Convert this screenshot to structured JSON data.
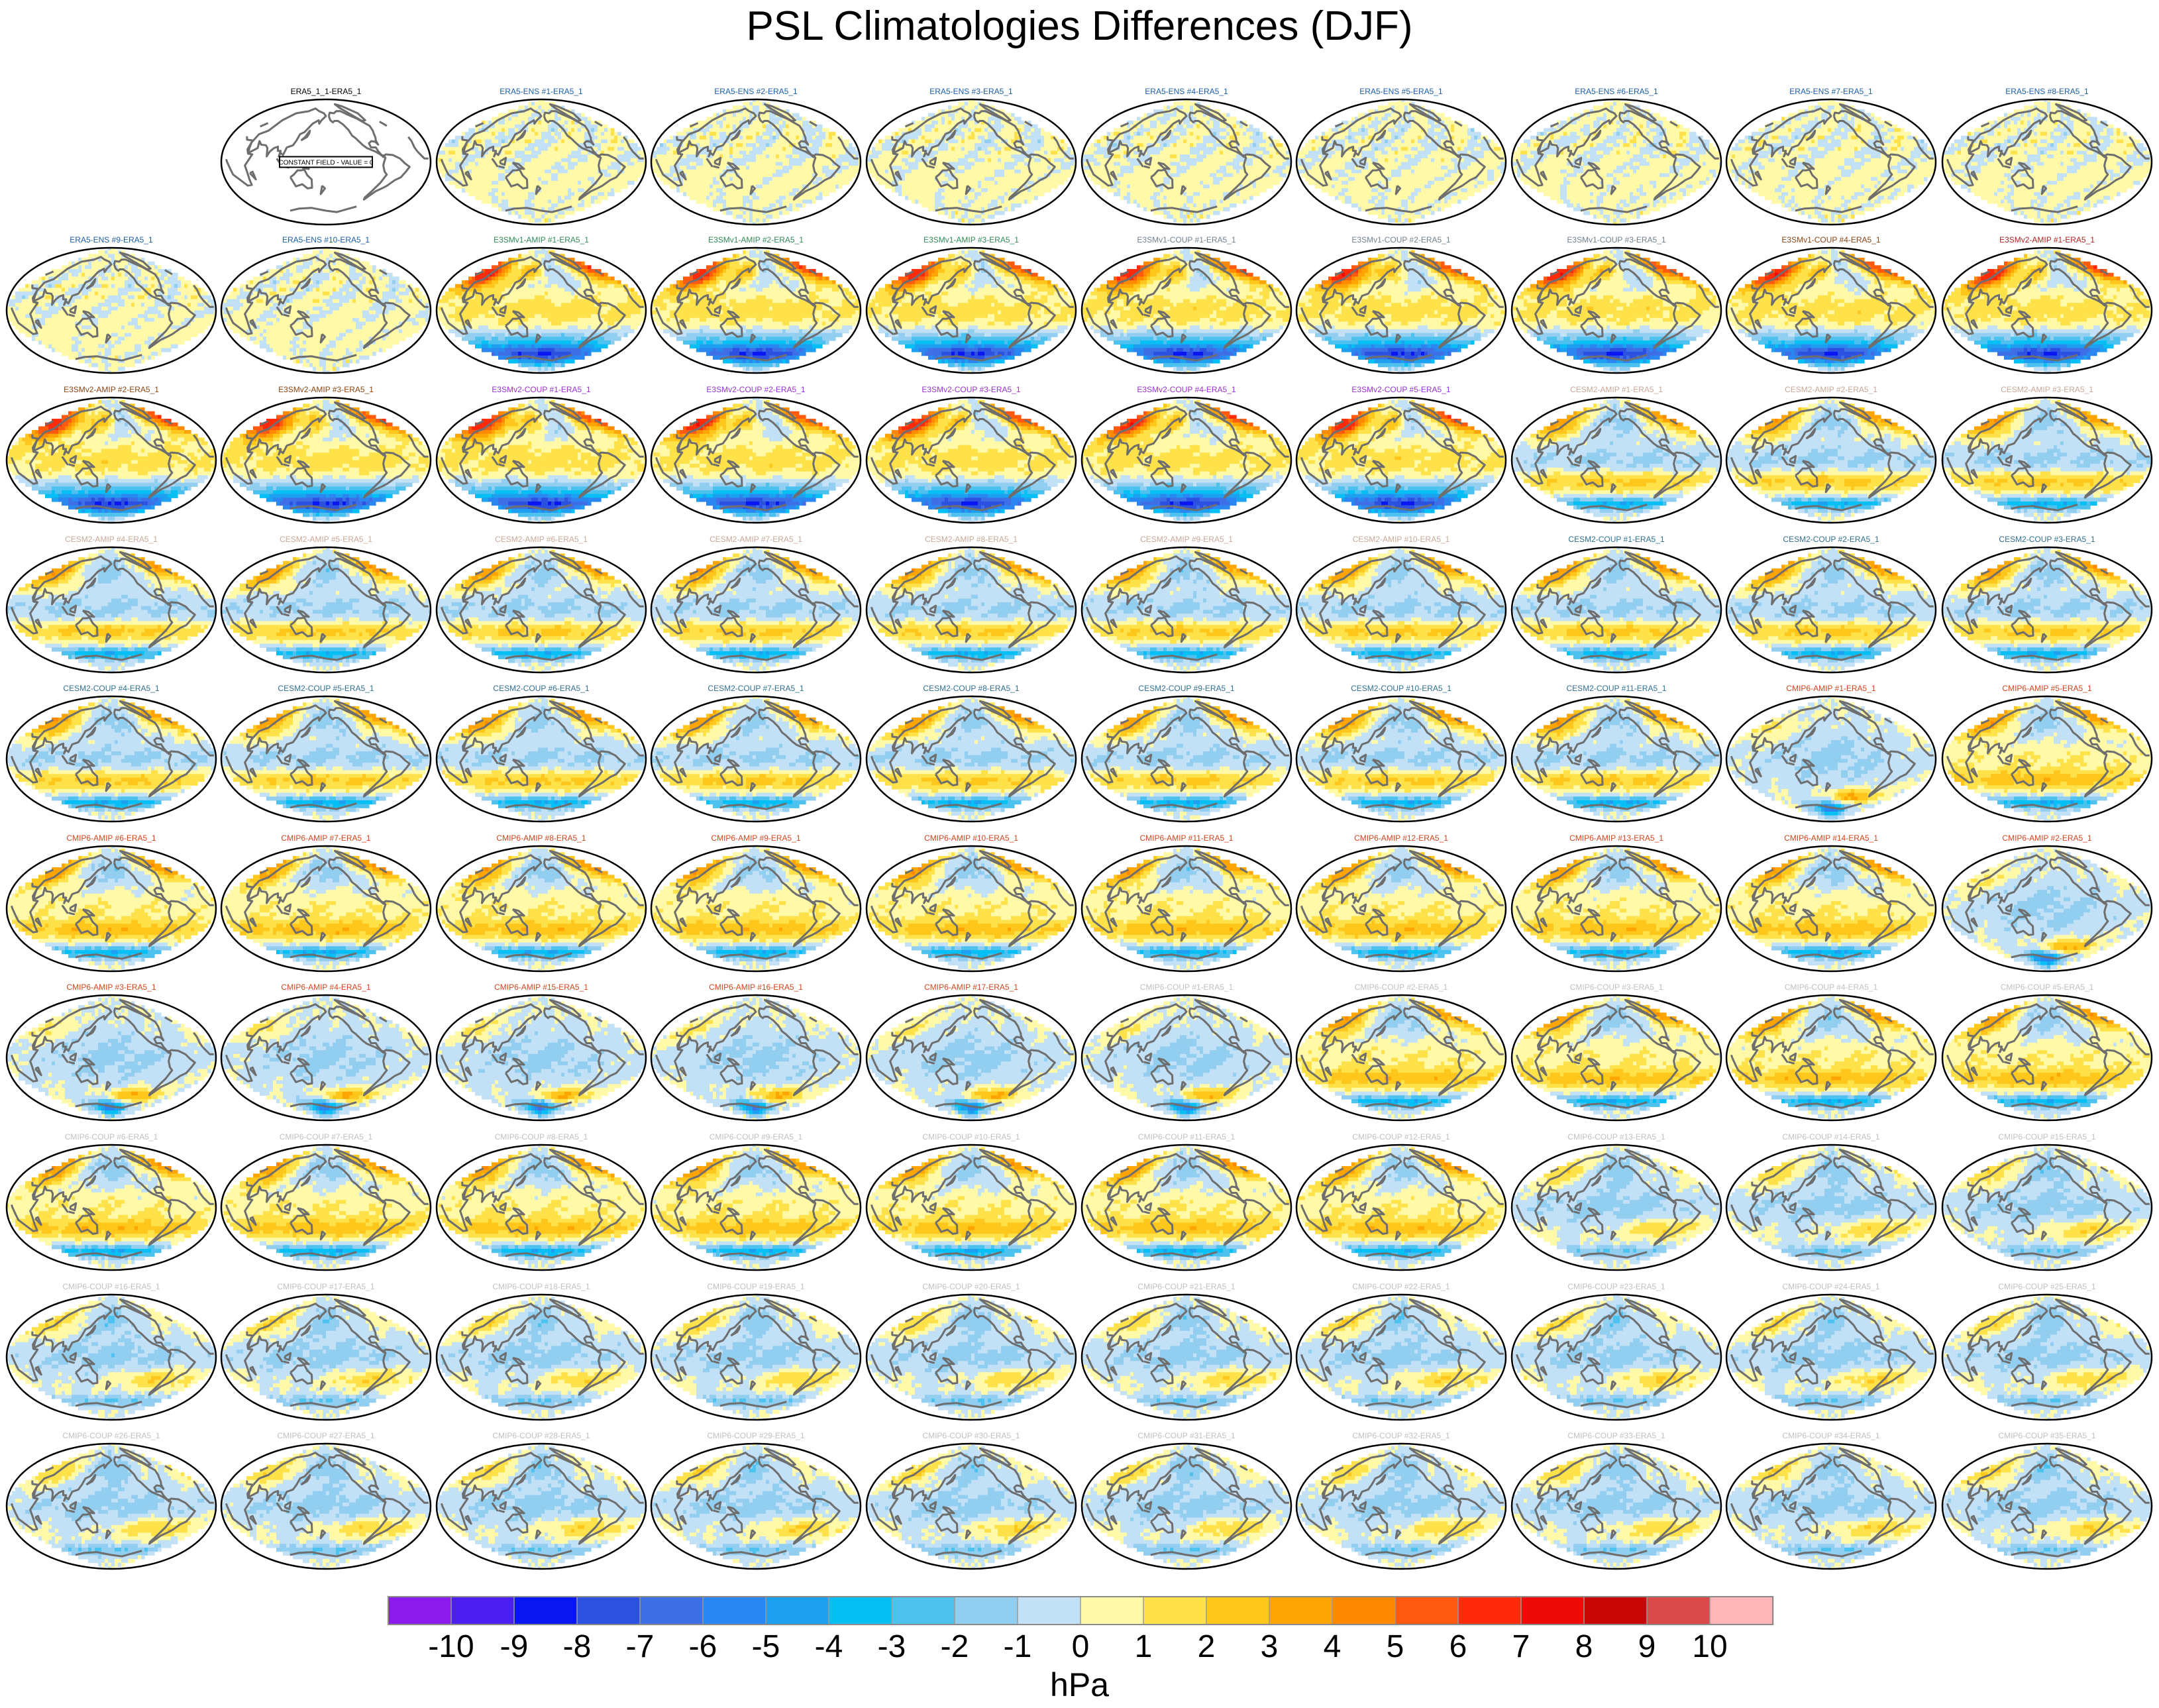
{
  "chart_data": {
    "type": "heatmap",
    "title": "PSL Climatologies Differences (DJF)",
    "subtitle": "Grid of global maps (10 rows x 10 columns); first cell empty",
    "colorbar": {
      "label": "hPa",
      "tick_labels": [
        "-10",
        "-9",
        "-8",
        "-7",
        "-6",
        "-5",
        "-4",
        "-3",
        "-2",
        "-1",
        "0",
        "1",
        "2",
        "3",
        "4",
        "5",
        "6",
        "7",
        "8",
        "9",
        "10"
      ],
      "colors": [
        "#8c1ceb",
        "#4a1ff0",
        "#0a16f2",
        "#2c50e0",
        "#3e6fe6",
        "#2a86f0",
        "#1ea0f0",
        "#06bff5",
        "#4dc2ef",
        "#92cef0",
        "#c2e0f6",
        "#fff9a8",
        "#ffe24a",
        "#ffc61c",
        "#ffa503",
        "#ff8a00",
        "#ff5a10",
        "#ff2a0a",
        "#ee0a08",
        "#c90606",
        "#d9494a",
        "#ffb6b8"
      ]
    },
    "panels": [
      {
        "title": "",
        "style": "blank",
        "color": "#000000"
      },
      {
        "title": "ERA5_1_1-ERA5_1",
        "style": "constant",
        "color": "#000000",
        "note": "CONSTANT FIELD - VALUE = 0"
      },
      {
        "title": "ERA5-ENS   #1-ERA5_1",
        "style": "ens",
        "color": "#1b5fa8"
      },
      {
        "title": "ERA5-ENS   #2-ERA5_1",
        "style": "ens",
        "color": "#1b5fa8"
      },
      {
        "title": "ERA5-ENS   #3-ERA5_1",
        "style": "ens",
        "color": "#1b5fa8"
      },
      {
        "title": "ERA5-ENS   #4-ERA5_1",
        "style": "ens",
        "color": "#1b5fa8"
      },
      {
        "title": "ERA5-ENS   #5-ERA5_1",
        "style": "ens",
        "color": "#1b5fa8"
      },
      {
        "title": "ERA5-ENS   #6-ERA5_1",
        "style": "ens",
        "color": "#1b5fa8"
      },
      {
        "title": "ERA5-ENS   #7-ERA5_1",
        "style": "ens",
        "color": "#1b5fa8"
      },
      {
        "title": "ERA5-ENS   #8-ERA5_1",
        "style": "ens",
        "color": "#1b5fa8"
      },
      {
        "title": "ERA5-ENS   #9-ERA5_1",
        "style": "ens",
        "color": "#1b5fa8"
      },
      {
        "title": "ERA5-ENS  #10-ERA5_1",
        "style": "ens",
        "color": "#1b5fa8"
      },
      {
        "title": "E3SMv1-AMIP #1-ERA5_1",
        "style": "e3sm",
        "color": "#2e8b57"
      },
      {
        "title": "E3SMv1-AMIP #2-ERA5_1",
        "style": "e3sm",
        "color": "#2e8b57"
      },
      {
        "title": "E3SMv1-AMIP #3-ERA5_1",
        "style": "e3sm",
        "color": "#2e8b57"
      },
      {
        "title": "E3SMv1-COUP #1-ERA5_1",
        "style": "e3sm",
        "color": "#708090"
      },
      {
        "title": "E3SMv1-COUP #2-ERA5_1",
        "style": "e3sm",
        "color": "#708090"
      },
      {
        "title": "E3SMv1-COUP #3-ERA5_1",
        "style": "e3sm",
        "color": "#708090"
      },
      {
        "title": "E3SMv1-COUP #4-ERA5_1",
        "style": "e3sm",
        "color": "#8b4513"
      },
      {
        "title": "E3SMv2-AMIP #1-ERA5_1",
        "style": "e3sm",
        "color": "#b22222"
      },
      {
        "title": "E3SMv2-AMIP #2-ERA5_1",
        "style": "e3sm",
        "color": "#8b4513"
      },
      {
        "title": "E3SMv2-AMIP #3-ERA5_1",
        "style": "e3sm",
        "color": "#8b4513"
      },
      {
        "title": "E3SMv2-COUP #1-ERA5_1",
        "style": "e3sm",
        "color": "#9932cc"
      },
      {
        "title": "E3SMv2-COUP #2-ERA5_1",
        "style": "e3sm",
        "color": "#9932cc"
      },
      {
        "title": "E3SMv2-COUP #3-ERA5_1",
        "style": "e3sm",
        "color": "#9932cc"
      },
      {
        "title": "E3SMv2-COUP #4-ERA5_1",
        "style": "e3sm",
        "color": "#9932cc"
      },
      {
        "title": "E3SMv2-COUP #5-ERA5_1",
        "style": "e3sm",
        "color": "#9932cc"
      },
      {
        "title": "CESM2-AMIP  #1-ERA5_1",
        "style": "cesm",
        "color": "#c8a898"
      },
      {
        "title": "CESM2-AMIP  #2-ERA5_1",
        "style": "cesm",
        "color": "#c8a898"
      },
      {
        "title": "CESM2-AMIP  #3-ERA5_1",
        "style": "cesm",
        "color": "#c8a898"
      },
      {
        "title": "CESM2-AMIP  #4-ERA5_1",
        "style": "cesm",
        "color": "#c8a898"
      },
      {
        "title": "CESM2-AMIP  #5-ERA5_1",
        "style": "cesm",
        "color": "#c8a898"
      },
      {
        "title": "CESM2-AMIP  #6-ERA5_1",
        "style": "cesm",
        "color": "#c8a898"
      },
      {
        "title": "CESM2-AMIP  #7-ERA5_1",
        "style": "cesm",
        "color": "#c8a898"
      },
      {
        "title": "CESM2-AMIP  #8-ERA5_1",
        "style": "cesm",
        "color": "#c8a898"
      },
      {
        "title": "CESM2-AMIP  #9-ERA5_1",
        "style": "cesm",
        "color": "#c8a898"
      },
      {
        "title": "CESM2-AMIP #10-ERA5_1",
        "style": "cesm",
        "color": "#c8a898"
      },
      {
        "title": "CESM2-COUP  #1-ERA5_1",
        "style": "cesm",
        "color": "#2f6f8f"
      },
      {
        "title": "CESM2-COUP  #2-ERA5_1",
        "style": "cesm",
        "color": "#2f6f8f"
      },
      {
        "title": "CESM2-COUP  #3-ERA5_1",
        "style": "cesm",
        "color": "#2f6f8f"
      },
      {
        "title": "CESM2-COUP  #4-ERA5_1",
        "style": "cesm",
        "color": "#2f6f8f"
      },
      {
        "title": "CESM2-COUP  #5-ERA5_1",
        "style": "cesm",
        "color": "#2f6f8f"
      },
      {
        "title": "CESM2-COUP  #6-ERA5_1",
        "style": "cesm",
        "color": "#2f6f8f"
      },
      {
        "title": "CESM2-COUP  #7-ERA5_1",
        "style": "cesm",
        "color": "#2f6f8f"
      },
      {
        "title": "CESM2-COUP  #8-ERA5_1",
        "style": "cesm",
        "color": "#2f6f8f"
      },
      {
        "title": "CESM2-COUP  #9-ERA5_1",
        "style": "cesm",
        "color": "#2f6f8f"
      },
      {
        "title": "CESM2-COUP #10-ERA5_1",
        "style": "cesm",
        "color": "#2f6f8f"
      },
      {
        "title": "CESM2-COUP #11-ERA5_1",
        "style": "cesm",
        "color": "#2f6f8f"
      },
      {
        "title": "CMIP6-AMIP  #1-ERA5_1",
        "style": "weak",
        "color": "#d2451e"
      },
      {
        "title": "CMIP6-AMIP  #5-ERA5_1",
        "style": "cmip",
        "color": "#d2451e"
      },
      {
        "title": "CMIP6-AMIP  #6-ERA5_1",
        "style": "cmip",
        "color": "#d2451e"
      },
      {
        "title": "CMIP6-AMIP  #7-ERA5_1",
        "style": "cmip",
        "color": "#d2451e"
      },
      {
        "title": "CMIP6-AMIP  #8-ERA5_1",
        "style": "cmip",
        "color": "#d2451e"
      },
      {
        "title": "CMIP6-AMIP  #9-ERA5_1",
        "style": "cmip",
        "color": "#d2451e"
      },
      {
        "title": "CMIP6-AMIP #10-ERA5_1",
        "style": "cmip",
        "color": "#d2451e"
      },
      {
        "title": "CMIP6-AMIP #11-ERA5_1",
        "style": "cmip",
        "color": "#d2451e"
      },
      {
        "title": "CMIP6-AMIP #12-ERA5_1",
        "style": "cmip",
        "color": "#d2451e"
      },
      {
        "title": "CMIP6-AMIP #13-ERA5_1",
        "style": "cmip",
        "color": "#d2451e"
      },
      {
        "title": "CMIP6-AMIP #14-ERA5_1",
        "style": "cmip",
        "color": "#d2451e"
      },
      {
        "title": "CMIP6-AMIP  #2-ERA5_1",
        "style": "weak",
        "color": "#d2451e"
      },
      {
        "title": "CMIP6-AMIP  #3-ERA5_1",
        "style": "weak",
        "color": "#d2451e"
      },
      {
        "title": "CMIP6-AMIP  #4-ERA5_1",
        "style": "weak",
        "color": "#d2451e"
      },
      {
        "title": "CMIP6-AMIP #15-ERA5_1",
        "style": "weak",
        "color": "#d2451e"
      },
      {
        "title": "CMIP6-AMIP #16-ERA5_1",
        "style": "weak",
        "color": "#d2451e"
      },
      {
        "title": "CMIP6-AMIP #17-ERA5_1",
        "style": "weak",
        "color": "#d2451e"
      },
      {
        "title": "CMIP6-COUP  #1-ERA5_1",
        "style": "weak",
        "color": "#c0c0c0"
      },
      {
        "title": "CMIP6-COUP  #2-ERA5_1",
        "style": "cmip",
        "color": "#c0c0c0"
      },
      {
        "title": "CMIP6-COUP  #3-ERA5_1",
        "style": "cmip",
        "color": "#c0c0c0"
      },
      {
        "title": "CMIP6-COUP  #4-ERA5_1",
        "style": "cmip",
        "color": "#c0c0c0"
      },
      {
        "title": "CMIP6-COUP  #5-ERA5_1",
        "style": "cmip",
        "color": "#c0c0c0"
      },
      {
        "title": "CMIP6-COUP  #6-ERA5_1",
        "style": "cmip",
        "color": "#c0c0c0"
      },
      {
        "title": "CMIP6-COUP  #7-ERA5_1",
        "style": "cmip",
        "color": "#c0c0c0"
      },
      {
        "title": "CMIP6-COUP  #8-ERA5_1",
        "style": "cmip",
        "color": "#c0c0c0"
      },
      {
        "title": "CMIP6-COUP  #9-ERA5_1",
        "style": "cmip",
        "color": "#c0c0c0"
      },
      {
        "title": "CMIP6-COUP #10-ERA5_1",
        "style": "cmip",
        "color": "#c0c0c0"
      },
      {
        "title": "CMIP6-COUP #11-ERA5_1",
        "style": "cmip",
        "color": "#c0c0c0"
      },
      {
        "title": "CMIP6-COUP #12-ERA5_1",
        "style": "cmip",
        "color": "#c0c0c0"
      },
      {
        "title": "CMIP6-COUP #13-ERA5_1",
        "style": "coup",
        "color": "#c0c0c0"
      },
      {
        "title": "CMIP6-COUP #14-ERA5_1",
        "style": "coup",
        "color": "#c0c0c0"
      },
      {
        "title": "CMIP6-COUP #15-ERA5_1",
        "style": "coup",
        "color": "#c0c0c0"
      },
      {
        "title": "CMIP6-COUP #16-ERA5_1",
        "style": "coup",
        "color": "#c0c0c0"
      },
      {
        "title": "CMIP6-COUP #17-ERA5_1",
        "style": "coup",
        "color": "#c0c0c0"
      },
      {
        "title": "CMIP6-COUP #18-ERA5_1",
        "style": "coup",
        "color": "#c0c0c0"
      },
      {
        "title": "CMIP6-COUP #19-ERA5_1",
        "style": "coup",
        "color": "#c0c0c0"
      },
      {
        "title": "CMIP6-COUP #20-ERA5_1",
        "style": "coup",
        "color": "#c0c0c0"
      },
      {
        "title": "CMIP6-COUP #21-ERA5_1",
        "style": "coup",
        "color": "#c0c0c0"
      },
      {
        "title": "CMIP6-COUP #22-ERA5_1",
        "style": "coup",
        "color": "#c0c0c0"
      },
      {
        "title": "CMIP6-COUP #23-ERA5_1",
        "style": "coup",
        "color": "#c0c0c0"
      },
      {
        "title": "CMIP6-COUP #24-ERA5_1",
        "style": "coup",
        "color": "#c0c0c0"
      },
      {
        "title": "CMIP6-COUP #25-ERA5_1",
        "style": "coup",
        "color": "#c0c0c0"
      },
      {
        "title": "CMIP6-COUP #26-ERA5_1",
        "style": "coup",
        "color": "#c0c0c0"
      },
      {
        "title": "CMIP6-COUP #27-ERA5_1",
        "style": "coup",
        "color": "#c0c0c0"
      },
      {
        "title": "CMIP6-COUP #28-ERA5_1",
        "style": "coup",
        "color": "#c0c0c0"
      },
      {
        "title": "CMIP6-COUP #29-ERA5_1",
        "style": "coup",
        "color": "#c0c0c0"
      },
      {
        "title": "CMIP6-COUP #30-ERA5_1",
        "style": "coup",
        "color": "#c0c0c0"
      },
      {
        "title": "CMIP6-COUP #31-ERA5_1",
        "style": "coup",
        "color": "#c0c0c0"
      },
      {
        "title": "CMIP6-COUP #32-ERA5_1",
        "style": "coup",
        "color": "#c0c0c0"
      },
      {
        "title": "CMIP6-COUP #33-ERA5_1",
        "style": "coup",
        "color": "#c0c0c0"
      },
      {
        "title": "CMIP6-COUP #34-ERA5_1",
        "style": "coup",
        "color": "#c0c0c0"
      },
      {
        "title": "CMIP6-COUP #35-ERA5_1",
        "style": "coup",
        "color": "#c0c0c0"
      }
    ]
  }
}
